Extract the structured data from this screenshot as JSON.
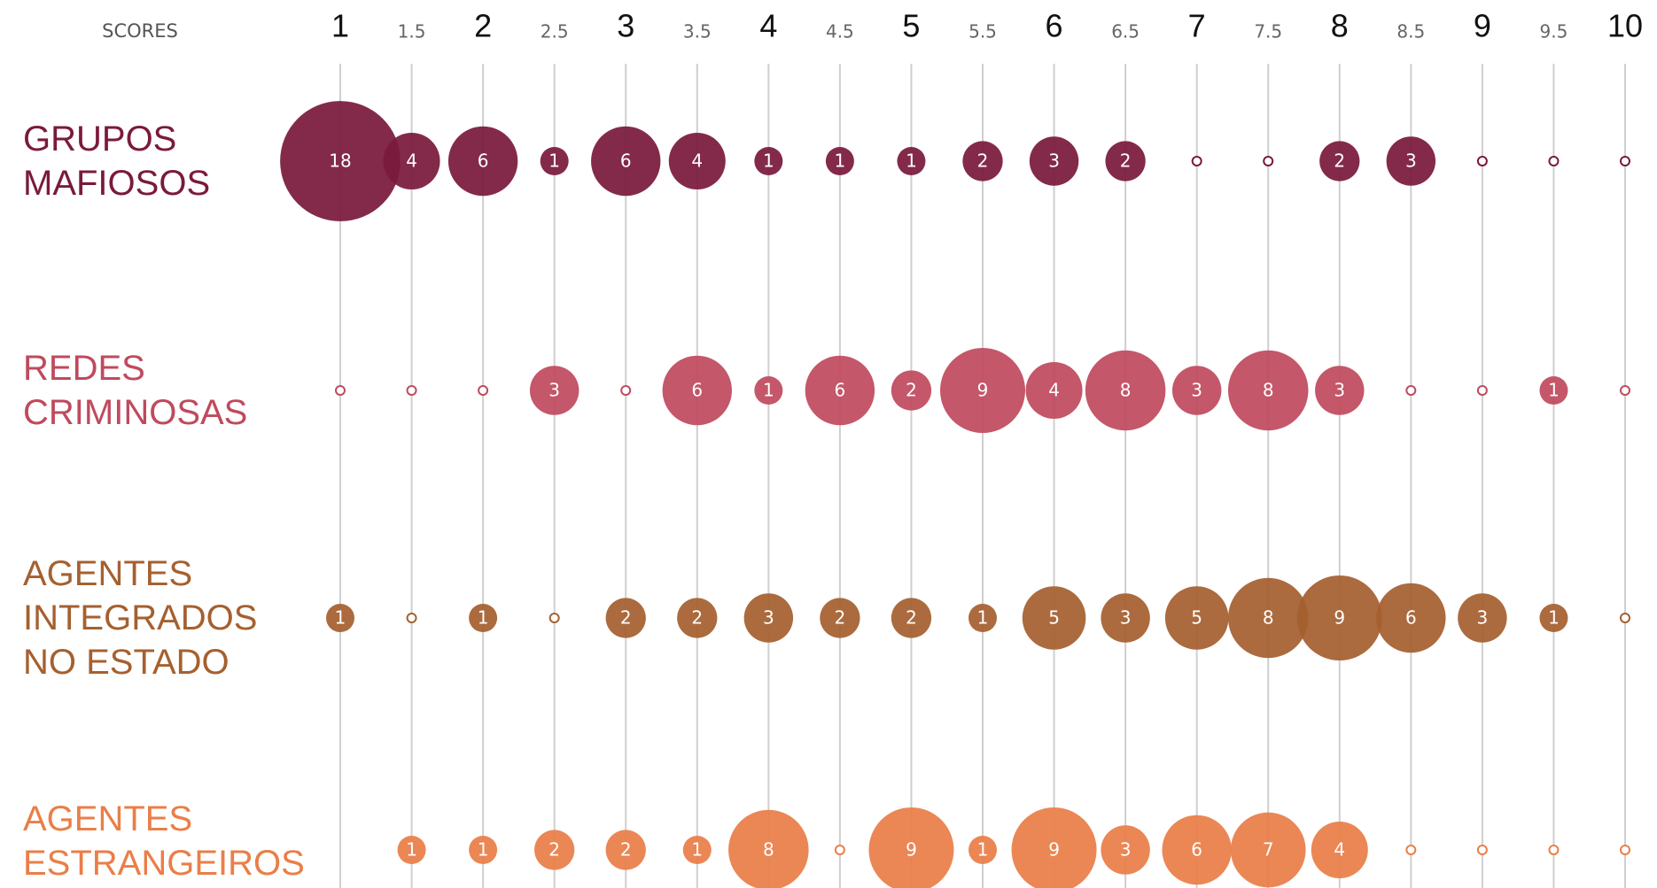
{
  "chart_data": {
    "type": "bubble",
    "x_label": "SCORES",
    "xlim": [
      1,
      10
    ],
    "xticks": [
      1,
      1.5,
      2,
      2.5,
      3,
      3.5,
      4,
      4.5,
      5,
      5.5,
      6,
      6.5,
      7,
      7.5,
      8,
      8.5,
      9,
      9.5,
      10
    ],
    "x": [
      1,
      1.5,
      2,
      2.5,
      3,
      3.5,
      4,
      4.5,
      5,
      5.5,
      6,
      6.5,
      7,
      7.5,
      8,
      8.5,
      9,
      9.5,
      10
    ],
    "grid": true,
    "series": [
      {
        "name": "GRUPOS MAFIOSOS",
        "color": "#7a1a3c",
        "values": [
          18,
          4,
          6,
          1,
          6,
          4,
          1,
          1,
          1,
          2,
          3,
          2,
          0,
          0,
          2,
          3,
          0,
          0,
          0
        ]
      },
      {
        "name": "REDES CRIMINOSAS",
        "color": "#bf4a5e",
        "values": [
          0,
          0,
          0,
          3,
          0,
          6,
          1,
          6,
          2,
          9,
          4,
          8,
          3,
          8,
          3,
          0,
          0,
          1,
          0
        ]
      },
      {
        "name": "AGENTES INTEGRADOS NO ESTADO",
        "color": "#a5602f",
        "values": [
          1,
          0,
          1,
          0,
          2,
          2,
          3,
          2,
          2,
          1,
          5,
          3,
          5,
          8,
          9,
          6,
          3,
          1,
          0
        ]
      },
      {
        "name": "AGENTES ESTRANGEIROS",
        "color": "#ea7e48",
        "values": [
          null,
          1,
          1,
          2,
          2,
          1,
          8,
          0,
          9,
          1,
          9,
          3,
          6,
          7,
          4,
          0,
          0,
          0,
          0
        ]
      }
    ]
  }
}
